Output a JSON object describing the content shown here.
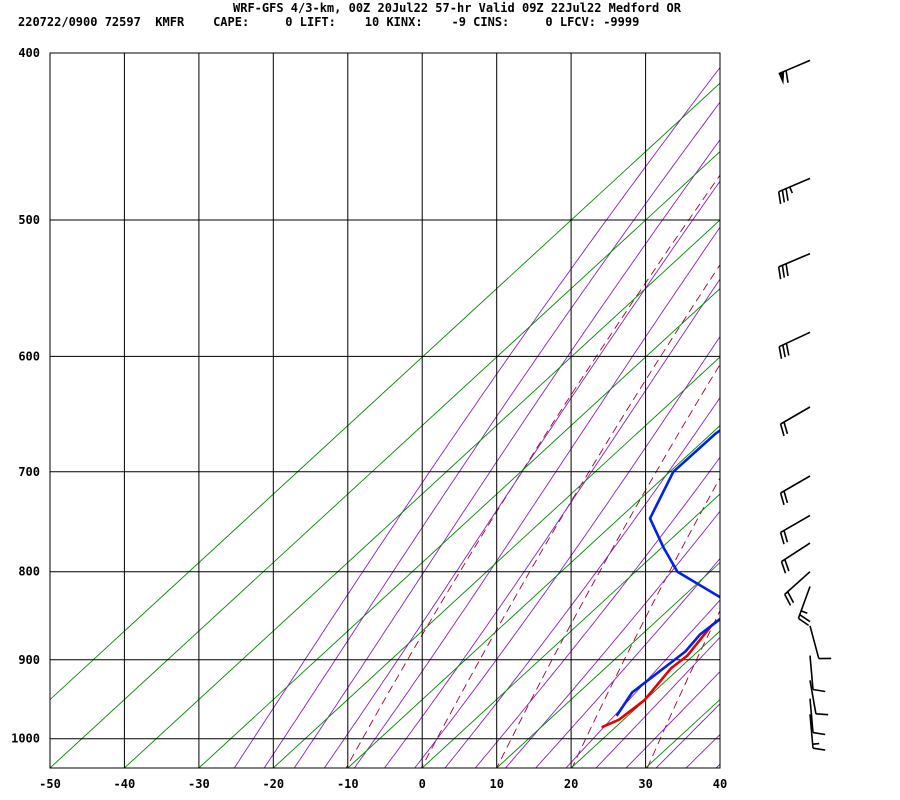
{
  "header": {
    "title": "WRF-GFS 4/3-km, 00Z 20Jul22 57-hr Valid 09Z 22Jul22 Medford OR",
    "info": "220722/0900 72597  KMFR    CAPE:     0 LIFT:    10 KINX:    -9 CINS:     0 LFCV: -9999"
  },
  "chart_data": {
    "type": "skew-t",
    "x_axis": {
      "ticks": [
        -50,
        -40,
        -30,
        -20,
        -10,
        0,
        10,
        20,
        30,
        40
      ],
      "range": [
        -50,
        40
      ],
      "unit": "C"
    },
    "y_axis": {
      "ticks": [
        400,
        500,
        600,
        700,
        800,
        900,
        1000
      ],
      "range": [
        1040,
        400
      ],
      "scale": "log",
      "unit": "mb"
    },
    "colors": {
      "temperature": "#e60000",
      "dewpoint": "#0022e6",
      "dry_adiabat": "#a0002a",
      "moist_adiabat": "#8822bb",
      "mixing_ratio": "#008800"
    },
    "series": [
      {
        "name": "temperature",
        "points": [
          [
            400,
            -20
          ],
          [
            470,
            -10
          ],
          [
            540,
            -3
          ],
          [
            600,
            2
          ],
          [
            650,
            6
          ],
          [
            700,
            9.5
          ],
          [
            740,
            12
          ],
          [
            780,
            13
          ],
          [
            820,
            14
          ],
          [
            860,
            14
          ],
          [
            895,
            16
          ],
          [
            910,
            16
          ],
          [
            950,
            18
          ],
          [
            975,
            18
          ],
          [
            985,
            17
          ]
        ]
      },
      {
        "name": "dewpoint",
        "points": [
          [
            400,
            -37
          ],
          [
            440,
            -33
          ],
          [
            480,
            -29
          ],
          [
            515,
            -25
          ],
          [
            560,
            -21
          ],
          [
            575,
            -20
          ],
          [
            615,
            -18
          ],
          [
            665,
            -19
          ],
          [
            700,
            -18
          ],
          [
            745,
            -13
          ],
          [
            775,
            -6
          ],
          [
            800,
            0
          ],
          [
            830,
            11
          ],
          [
            845,
            14
          ],
          [
            855,
            14
          ],
          [
            870,
            14
          ],
          [
            890,
            15
          ],
          [
            915,
            15
          ],
          [
            940,
            15
          ],
          [
            970,
            17
          ]
        ]
      }
    ],
    "wind_barbs": [
      {
        "p": 404,
        "dir": 247,
        "spd": 60
      },
      {
        "p": 473,
        "dir": 247,
        "spd": 35
      },
      {
        "p": 523,
        "dir": 247,
        "spd": 30
      },
      {
        "p": 581,
        "dir": 245,
        "spd": 30
      },
      {
        "p": 642,
        "dir": 240,
        "spd": 20
      },
      {
        "p": 704,
        "dir": 240,
        "spd": 20
      },
      {
        "p": 742,
        "dir": 240,
        "spd": 20
      },
      {
        "p": 770,
        "dir": 237,
        "spd": 20
      },
      {
        "p": 800,
        "dir": 228,
        "spd": 20
      },
      {
        "p": 816,
        "dir": 200,
        "spd": 25
      },
      {
        "p": 860,
        "dir": 165,
        "spd": 10
      },
      {
        "p": 895,
        "dir": 175,
        "spd": 10
      },
      {
        "p": 925,
        "dir": 170,
        "spd": 10
      },
      {
        "p": 948,
        "dir": 175,
        "spd": 10
      },
      {
        "p": 968,
        "dir": 175,
        "spd": 15
      }
    ]
  }
}
